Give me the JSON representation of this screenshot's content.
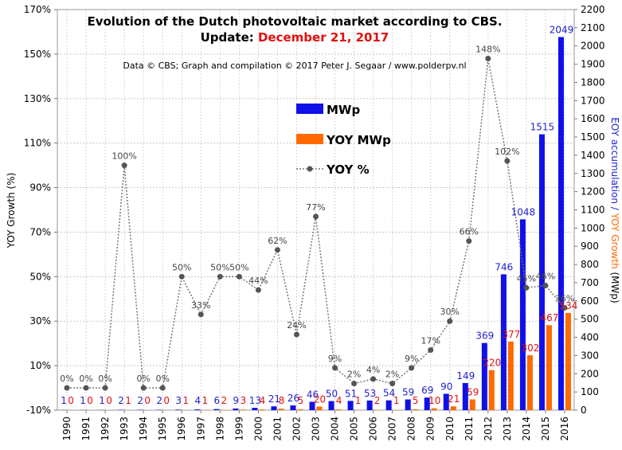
{
  "chart_data": {
    "type": "bar",
    "title_line1": "Evolution  of the Dutch photovoltaic  market according to CBS.",
    "title_line2_prefix": "Update: ",
    "title_line2_date": "December 21, 2017",
    "credit": "Data © CBS; Graph and compilation © 2017 Peter J. Segaar / www.polderpv.nl",
    "ylabel_left": "YOY Growth (%)",
    "ylabel_right_part1": "EOY accumulation / ",
    "ylabel_right_part2": "YOY Growth",
    "ylabel_right_part3": " (MWp)",
    "left_axis": {
      "min": -10,
      "max": 170,
      "ticks": [
        "-10%",
        "10%",
        "30%",
        "50%",
        "70%",
        "90%",
        "110%",
        "130%",
        "150%",
        "170%"
      ]
    },
    "right_axis": {
      "min": 0,
      "max": 2200,
      "ticks": [
        "0",
        "100",
        "200",
        "300",
        "400",
        "500",
        "600",
        "700",
        "800",
        "900",
        "1000",
        "1100",
        "1200",
        "1300",
        "1400",
        "1500",
        "1600",
        "1700",
        "1800",
        "1900",
        "2000",
        "2100",
        "2200"
      ]
    },
    "categories": [
      "1990",
      "1991",
      "1992",
      "1993",
      "1994",
      "1995",
      "1996",
      "1997",
      "1998",
      "1999",
      "2000",
      "2001",
      "2002",
      "2003",
      "2004",
      "2005",
      "2006",
      "2007",
      "2008",
      "2009",
      "2010",
      "2011",
      "2012",
      "2013",
      "2014",
      "2015",
      "2016"
    ],
    "legend": [
      {
        "name": "MWp",
        "color": "#1010e8",
        "kind": "bar"
      },
      {
        "name": "YOY MWp",
        "color": "#ff6a00",
        "kind": "bar"
      },
      {
        "name": "YOY %",
        "color": "#555555",
        "kind": "line"
      }
    ],
    "series": [
      {
        "name": "MWp",
        "axis": "right",
        "values": [
          1,
          1,
          1,
          2,
          2,
          2,
          3,
          4,
          6,
          9,
          13,
          21,
          26,
          46,
          50,
          51,
          53,
          54,
          59,
          69,
          90,
          149,
          369,
          746,
          1048,
          1515,
          2049
        ],
        "labels": [
          "1",
          "1",
          "1",
          "2",
          "2",
          "2",
          "3",
          "4",
          "6",
          "9",
          "13",
          "21",
          "26",
          "46",
          "50",
          "51",
          "53",
          "54",
          "59",
          "69",
          "90",
          "149",
          "369",
          "746",
          "1048",
          "1515",
          "2049"
        ]
      },
      {
        "name": "YOY MWp",
        "axis": "right",
        "values": [
          0,
          0,
          0,
          1,
          0,
          0,
          1,
          1,
          2,
          3,
          4,
          8,
          5,
          20,
          4,
          1,
          2,
          1,
          5,
          10,
          21,
          59,
          220,
          377,
          302,
          467,
          534
        ],
        "labels": [
          "0",
          "0",
          "0",
          "1",
          "0",
          "0",
          "1",
          "1",
          "2",
          "3",
          "4",
          "8",
          "5",
          "20",
          "4",
          "1",
          "2",
          "1",
          "5",
          "10",
          "21",
          "59",
          "220",
          "377",
          "302",
          "467",
          "534"
        ]
      },
      {
        "name": "YOY %",
        "axis": "left",
        "values": [
          0,
          0,
          0,
          100,
          0,
          0,
          50,
          33,
          50,
          50,
          44,
          62,
          24,
          77,
          9,
          2,
          4,
          2,
          9,
          17,
          30,
          66,
          148,
          102,
          45,
          46,
          36
        ],
        "labels": [
          "0%",
          "0%",
          "0%",
          "100%",
          "0%",
          "0%",
          "50%",
          "33%",
          "50%",
          "50%",
          "44%",
          "62%",
          "24%",
          "77%",
          "9%",
          "2%",
          "4%",
          "2%",
          "9%",
          "17%",
          "30%",
          "66%",
          "148%",
          "102%",
          "45%",
          "46%",
          "36%"
        ]
      }
    ],
    "grid": true,
    "legend_position": "center-top"
  }
}
